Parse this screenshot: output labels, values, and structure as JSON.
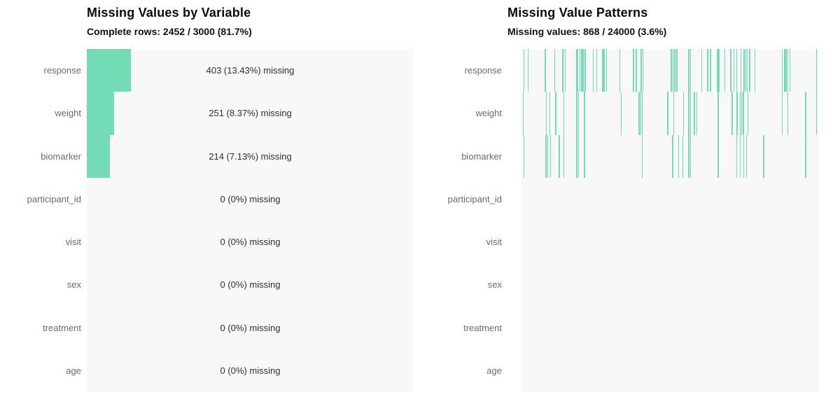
{
  "colors": {
    "accent": "#74dcb5",
    "plot_background": "#f8f8f8",
    "label_text": "#6b6b6b",
    "annotation_text": "#2e2e2e",
    "title_text": "#0b0b0b"
  },
  "chart_data": [
    {
      "type": "bar",
      "orientation": "horizontal",
      "title": "Missing Values by Variable",
      "subtitle": "Complete rows: 2452 / 3000 (81.7%)",
      "categories": [
        "response",
        "weight",
        "biomarker",
        "participant_id",
        "visit",
        "sex",
        "treatment",
        "age"
      ],
      "missing_counts": [
        403,
        251,
        214,
        0,
        0,
        0,
        0,
        0
      ],
      "missing_pct": [
        13.43,
        8.37,
        7.13,
        0,
        0,
        0,
        0,
        0
      ],
      "annotations": [
        "403 (13.43%) missing",
        "251 (8.37%) missing",
        "214 (7.13%) missing",
        "0 (0%) missing",
        "0 (0%) missing",
        "0 (0%) missing",
        "0 (0%) missing",
        "0 (0%) missing"
      ],
      "xlim": [
        0,
        100
      ],
      "grid": false,
      "legend": "none"
    },
    {
      "type": "heatmap",
      "subtype": "missingness-tick-pattern",
      "title": "Missing Value Patterns",
      "subtitle": "Missing values: 868 / 24000 (3.6%)",
      "categories": [
        "response",
        "weight",
        "biomarker",
        "participant_id",
        "visit",
        "sex",
        "treatment",
        "age"
      ],
      "grid": false,
      "legend": "none",
      "tick_positions_pct": {
        "response": [
          0.6,
          2.0,
          7.8,
          11.0,
          13.7,
          14.5,
          18.4,
          18.8,
          19.5,
          20.0,
          20.5,
          21.2,
          23.9,
          25.1,
          27.1,
          27.6,
          28.4,
          32.9,
          37.5,
          38.4,
          40.0,
          40.6,
          50.2,
          50.8,
          51.4,
          52.0,
          56.0,
          56.6,
          60.4,
          62.4,
          63.4,
          65.7,
          66.2,
          68.2,
          70.2,
          71.2,
          72.2,
          73.6,
          74.7,
          75.2,
          75.7,
          76.5,
          78.3,
          87.5,
          88.3,
          88.8,
          89.3,
          90.0,
          99.0
        ],
        "weight": [
          0.4,
          8.2,
          9.3,
          11.4,
          14.0,
          18.4,
          19.0,
          21.0,
          33.3,
          39.4,
          39.9,
          40.4,
          49.0,
          51.0,
          54.3,
          56.1,
          56.6,
          57.9,
          58.8,
          65.9,
          70.6,
          72.3,
          73.3,
          73.8,
          74.4,
          75.9,
          87.5,
          89.4,
          95.3,
          99.0
        ],
        "biomarker": [
          0.6,
          8.1,
          8.6,
          9.6,
          12.5,
          14.0,
          18.4,
          19.0,
          21.0,
          40.4,
          50.6,
          52.7,
          54.1,
          56.1,
          56.6,
          65.9,
          72.2,
          73.3,
          74.5,
          75.5,
          81.2,
          95.3
        ],
        "participant_id": [],
        "visit": [],
        "sex": [],
        "treatment": [],
        "age": []
      }
    }
  ]
}
